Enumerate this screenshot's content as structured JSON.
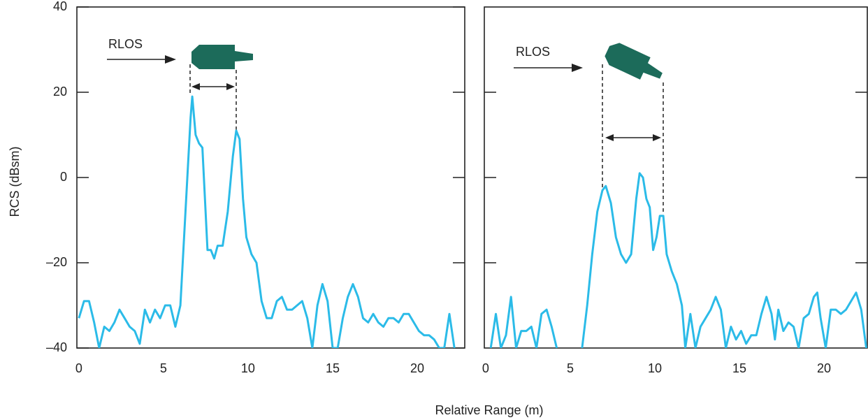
{
  "chart_data": [
    {
      "type": "line",
      "y_label": "RCS (dBsm)",
      "x_label": "Relative Range (m)",
      "annotations": [
        "RLOS"
      ],
      "xlim": [
        -0.12,
        22.81
      ],
      "ylim": [
        -40,
        40
      ],
      "xticks": [
        0,
        5,
        10,
        15,
        20
      ],
      "yticks": [
        {
          "value": -40,
          "label": "–40"
        },
        {
          "value": -20,
          "label": "–20"
        },
        0,
        20,
        40
      ],
      "show_ytick_labels": true,
      "series": [
        {
          "color": "#2bbbe8",
          "x": [
            0,
            0.3,
            0.6,
            0.9,
            1.2,
            1.5,
            1.8,
            2.1,
            2.4,
            2.7,
            3.0,
            3.3,
            3.6,
            3.9,
            4.2,
            4.5,
            4.8,
            5.1,
            5.4,
            5.7,
            6.0,
            6.3,
            6.6,
            6.7,
            6.9,
            7.1,
            7.3,
            7.6,
            7.8,
            8.0,
            8.2,
            8.5,
            8.8,
            9.1,
            9.3,
            9.5,
            9.7,
            9.9,
            10.2,
            10.5,
            10.8,
            11.1,
            11.4,
            11.7,
            12.0,
            12.3,
            12.6,
            12.9,
            13.2,
            13.5,
            13.8,
            14.1,
            14.4,
            14.7,
            15.0,
            15.3,
            15.6,
            15.9,
            16.2,
            16.5,
            16.8,
            17.1,
            17.4,
            17.7,
            18.0,
            18.3,
            18.6,
            18.9,
            19.2,
            19.5,
            19.8,
            20.1,
            20.4,
            20.7,
            21.0,
            21.3,
            21.6,
            21.9,
            22.2
          ],
          "values": [
            -33,
            -29,
            -29,
            -34,
            -40,
            -35,
            -36,
            -34,
            -31,
            -33,
            -35,
            -36,
            -39,
            -31,
            -34,
            -31,
            -33,
            -30,
            -30,
            -35,
            -30,
            -8,
            14,
            19,
            10,
            8,
            7,
            -17,
            -17,
            -19,
            -16,
            -16,
            -8,
            5,
            11,
            9,
            -5,
            -14,
            -18,
            -20,
            -29,
            -33,
            -33,
            -29,
            -28,
            -31,
            -31,
            -30,
            -29,
            -33,
            -40,
            -30,
            -25,
            -29,
            -40,
            -40,
            -33,
            -28,
            -25,
            -28,
            -33,
            -34,
            -32,
            -34,
            -35,
            -33,
            -33,
            -34,
            -32,
            -32,
            -34,
            -36,
            -37,
            -37,
            -38,
            -40,
            -40,
            -32,
            -40
          ]
        }
      ]
    },
    {
      "type": "line",
      "annotations": [
        "RLOS"
      ],
      "xlim": [
        -0.08,
        22.56
      ],
      "ylim": [
        -40,
        40
      ],
      "xticks": [
        0,
        5,
        10,
        15,
        20
      ],
      "yticks": [
        -20,
        0,
        20
      ],
      "show_ytick_labels": false,
      "series": [
        {
          "color": "#2bbbe8",
          "x": [
            0.3,
            0.6,
            0.9,
            1.2,
            1.5,
            1.8,
            2.1,
            2.4,
            2.7,
            3.0,
            3.3,
            3.6,
            3.9,
            4.2,
            4.8,
            5.7,
            6.0,
            6.3,
            6.6,
            6.9,
            7.1,
            7.4,
            7.7,
            8.0,
            8.3,
            8.6,
            8.9,
            9.1,
            9.3,
            9.5,
            9.7,
            9.9,
            10.1,
            10.3,
            10.5,
            10.7,
            11.0,
            11.3,
            11.6,
            11.8,
            12.1,
            12.4,
            12.7,
            13.0,
            13.3,
            13.6,
            13.9,
            14.2,
            14.5,
            14.8,
            15.1,
            15.4,
            15.7,
            16.0,
            16.3,
            16.6,
            16.9,
            17.1,
            17.3,
            17.6,
            17.9,
            18.2,
            18.5,
            18.8,
            19.1,
            19.4,
            19.6,
            19.8,
            20.1,
            20.4,
            20.7,
            21.0,
            21.3,
            21.6,
            21.9,
            22.2,
            22.5
          ],
          "values": [
            -40,
            -32,
            -40,
            -37,
            -28,
            -40,
            -36,
            -36,
            -35,
            -40,
            -32,
            -31,
            -35,
            -40,
            null,
            -40,
            -30,
            -18,
            -8,
            -3,
            -2,
            -6,
            -14,
            -18,
            -20,
            -18,
            -5,
            1,
            0,
            -5,
            -7,
            -17,
            -14,
            -9,
            -9,
            -18,
            -22,
            -25,
            -30,
            -40,
            -32,
            -40,
            -35,
            -33,
            -31,
            -28,
            -31,
            -40,
            -35,
            -38,
            -36,
            -39,
            -37,
            -37,
            -32,
            -28,
            -32,
            -38,
            -31,
            -36,
            -34,
            -35,
            -40,
            -33,
            -32,
            -28,
            -27,
            -33,
            -40,
            -31,
            -31,
            -32,
            -31,
            -29,
            -27,
            -31,
            -40
          ]
        }
      ]
    }
  ]
}
